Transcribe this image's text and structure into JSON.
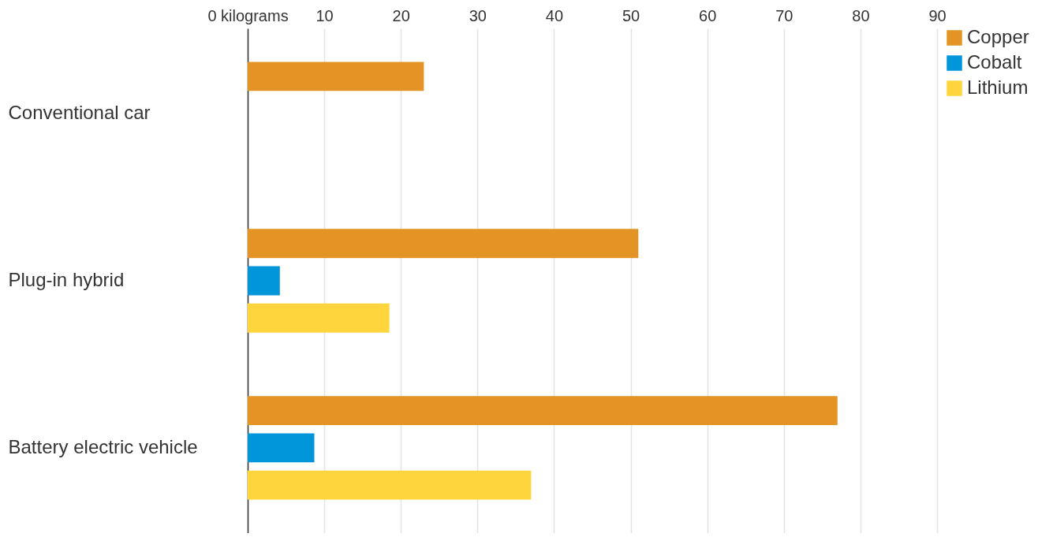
{
  "chart_data": {
    "type": "bar",
    "orientation": "horizontal",
    "categories": [
      "Conventional car",
      "Plug-in hybrid",
      "Battery electric vehicle"
    ],
    "series": [
      {
        "name": "Copper",
        "color": "#e39424",
        "values": [
          23,
          51,
          77
        ]
      },
      {
        "name": "Cobalt",
        "color": "#0096d9",
        "values": [
          null,
          4.2,
          8.7
        ]
      },
      {
        "name": "Lithium",
        "color": "#fed53d",
        "values": [
          null,
          18.5,
          37
        ]
      }
    ],
    "xlim": [
      0,
      90
    ],
    "xticks": [
      {
        "value": 0,
        "label": "0 kilograms"
      },
      10,
      20,
      30,
      40,
      50,
      60,
      70,
      80,
      90
    ],
    "grid": "x",
    "legend": "right"
  }
}
